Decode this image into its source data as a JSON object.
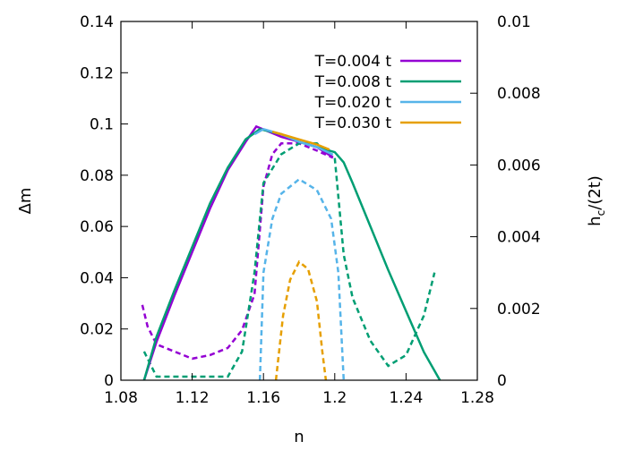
{
  "chart_data": {
    "type": "line",
    "xlabel": "n",
    "ylabel_left": "Δm",
    "ylabel_right_main": "h",
    "ylabel_right_sub": "c",
    "ylabel_right_tail": "/(2t)",
    "xlim": [
      1.08,
      1.28
    ],
    "ylim_left": [
      0,
      0.14
    ],
    "ylim_right": [
      0,
      0.01
    ],
    "x_ticks": [
      "1.08",
      "1.12",
      "1.16",
      "1.2",
      "1.24",
      "1.28"
    ],
    "x_tick_values": [
      1.08,
      1.12,
      1.16,
      1.2,
      1.24,
      1.28
    ],
    "y_left_ticks": [
      "0",
      "0.02",
      "0.04",
      "0.06",
      "0.08",
      "0.1",
      "0.12",
      "0.14"
    ],
    "y_left_tick_values": [
      0,
      0.02,
      0.04,
      0.06,
      0.08,
      0.1,
      0.12,
      0.14
    ],
    "y_right_ticks": [
      "0",
      "0.002",
      "0.004",
      "0.006",
      "0.008",
      "0.01"
    ],
    "y_right_tick_values": [
      0,
      0.002,
      0.004,
      0.006,
      0.008,
      0.01
    ],
    "grid": false,
    "legend_position": "top-right",
    "series": [
      {
        "name": "T=0.004 t",
        "color": "#9400d3",
        "solid": [
          [
            1.093,
            0
          ],
          [
            1.1,
            0.015
          ],
          [
            1.11,
            0.033
          ],
          [
            1.12,
            0.05
          ],
          [
            1.13,
            0.067
          ],
          [
            1.14,
            0.082
          ],
          [
            1.15,
            0.093
          ],
          [
            1.156,
            0.099
          ],
          [
            1.17,
            0.095
          ],
          [
            1.18,
            0.093
          ],
          [
            1.19,
            0.091
          ],
          [
            1.199,
            0.087
          ]
        ],
        "dashed": [
          [
            1.092,
            0.0021
          ],
          [
            1.095,
            0.0015
          ],
          [
            1.1,
            0.001
          ],
          [
            1.11,
            0.0008
          ],
          [
            1.12,
            0.0006
          ],
          [
            1.13,
            0.0007
          ],
          [
            1.14,
            0.0009
          ],
          [
            1.148,
            0.0014
          ],
          [
            1.155,
            0.0024
          ],
          [
            1.16,
            0.0054
          ],
          [
            1.165,
            0.0063
          ],
          [
            1.17,
            0.0066
          ],
          [
            1.18,
            0.0066
          ],
          [
            1.19,
            0.0064
          ],
          [
            1.199,
            0.0062
          ]
        ]
      },
      {
        "name": "T=0.008 t",
        "color": "#009e73",
        "solid": [
          [
            1.093,
            0
          ],
          [
            1.1,
            0.017
          ],
          [
            1.11,
            0.035
          ],
          [
            1.12,
            0.052
          ],
          [
            1.13,
            0.069
          ],
          [
            1.14,
            0.083
          ],
          [
            1.15,
            0.094
          ],
          [
            1.158,
            0.098
          ],
          [
            1.17,
            0.096
          ],
          [
            1.18,
            0.093
          ],
          [
            1.19,
            0.091
          ],
          [
            1.2,
            0.089
          ],
          [
            1.205,
            0.085
          ],
          [
            1.21,
            0.077
          ],
          [
            1.22,
            0.06
          ],
          [
            1.23,
            0.043
          ],
          [
            1.24,
            0.027
          ],
          [
            1.25,
            0.011
          ],
          [
            1.259,
            0
          ]
        ],
        "dashed": [
          [
            1.093,
            0.0008
          ],
          [
            1.1,
            0.0001
          ],
          [
            1.11,
            0.0001
          ],
          [
            1.12,
            0.0001
          ],
          [
            1.13,
            0.0001
          ],
          [
            1.14,
            0.0001
          ],
          [
            1.148,
            0.0008
          ],
          [
            1.155,
            0.003
          ],
          [
            1.16,
            0.0055
          ],
          [
            1.17,
            0.0063
          ],
          [
            1.18,
            0.0066
          ],
          [
            1.19,
            0.0066
          ],
          [
            1.2,
            0.0062
          ],
          [
            1.205,
            0.0035
          ],
          [
            1.21,
            0.0023
          ],
          [
            1.22,
            0.0011
          ],
          [
            1.23,
            0.0004
          ],
          [
            1.24,
            0.0007
          ],
          [
            1.25,
            0.0018
          ],
          [
            1.256,
            0.003
          ]
        ]
      },
      {
        "name": "T=0.020 t",
        "color": "#56b4e9",
        "solid": [
          [
            1.155,
            0.096
          ],
          [
            1.16,
            0.098
          ],
          [
            1.17,
            0.096
          ],
          [
            1.18,
            0.093
          ],
          [
            1.19,
            0.091
          ],
          [
            1.199,
            0.088
          ]
        ],
        "dashed": [
          [
            1.158,
            0
          ],
          [
            1.16,
            0.003
          ],
          [
            1.165,
            0.0045
          ],
          [
            1.17,
            0.0052
          ],
          [
            1.18,
            0.0056
          ],
          [
            1.19,
            0.0053
          ],
          [
            1.198,
            0.0045
          ],
          [
            1.202,
            0.003
          ],
          [
            1.205,
            0
          ]
        ]
      },
      {
        "name": "T=0.030 t",
        "color": "#e69f00",
        "solid": [
          [
            1.165,
            0.097
          ],
          [
            1.17,
            0.096
          ],
          [
            1.18,
            0.094
          ],
          [
            1.19,
            0.092
          ],
          [
            1.197,
            0.09
          ]
        ],
        "dashed": [
          [
            1.167,
            0
          ],
          [
            1.171,
            0.0018
          ],
          [
            1.175,
            0.0028
          ],
          [
            1.18,
            0.0033
          ],
          [
            1.185,
            0.0031
          ],
          [
            1.19,
            0.0022
          ],
          [
            1.193,
            0.0008
          ],
          [
            1.195,
            0
          ]
        ]
      }
    ]
  }
}
